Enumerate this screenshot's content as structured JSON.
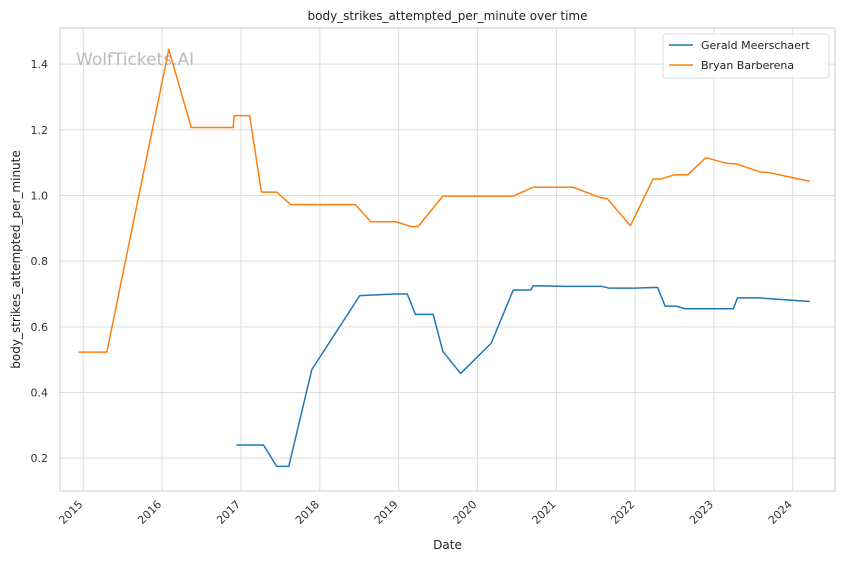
{
  "chart_data": {
    "type": "line",
    "title": "body_strikes_attempted_per_minute over time",
    "xlabel": "Date",
    "ylabel": "body_strikes_attempted_per_minute",
    "watermark": "WolfTickets.AI",
    "x_ticks": [
      "2015",
      "2016",
      "2017",
      "2018",
      "2019",
      "2020",
      "2021",
      "2022",
      "2023",
      "2024"
    ],
    "y_ticks": [
      "0.2",
      "0.4",
      "0.6",
      "0.8",
      "1.0",
      "1.2",
      "1.4"
    ],
    "xlim": [
      "2014-09-15",
      "2024-07-15"
    ],
    "ylim": [
      0.1,
      1.51
    ],
    "grid": true,
    "legend_position": "top-right",
    "series": [
      {
        "name": "Gerald Meerschaert",
        "color": "#1f77b4",
        "points": [
          [
            "2016-12-10",
            0.24
          ],
          [
            "2017-04-15",
            0.24
          ],
          [
            "2017-06-15",
            0.175
          ],
          [
            "2017-08-10",
            0.175
          ],
          [
            "2017-11-25",
            0.47
          ],
          [
            "2018-07-05",
            0.695
          ],
          [
            "2018-12-15",
            0.7
          ],
          [
            "2019-02-10",
            0.7
          ],
          [
            "2019-03-20",
            0.638
          ],
          [
            "2019-06-10",
            0.638
          ],
          [
            "2019-07-25",
            0.525
          ],
          [
            "2019-10-15",
            0.458
          ],
          [
            "2020-03-05",
            0.55
          ],
          [
            "2020-06-15",
            0.712
          ],
          [
            "2020-09-05",
            0.712
          ],
          [
            "2020-09-15",
            0.725
          ],
          [
            "2021-02-15",
            0.723
          ],
          [
            "2021-08-01",
            0.723
          ],
          [
            "2021-09-01",
            0.718
          ],
          [
            "2022-01-01",
            0.718
          ],
          [
            "2022-04-15",
            0.72
          ],
          [
            "2022-05-20",
            0.663
          ],
          [
            "2022-07-10",
            0.663
          ],
          [
            "2022-08-20",
            0.655
          ],
          [
            "2023-04-01",
            0.655
          ],
          [
            "2023-04-20",
            0.688
          ],
          [
            "2023-08-01",
            0.688
          ],
          [
            "2024-03-20",
            0.677
          ]
        ]
      },
      {
        "name": "Bryan Barberena",
        "color": "#ff7f0e",
        "points": [
          [
            "2014-12-10",
            0.523
          ],
          [
            "2015-04-20",
            0.523
          ],
          [
            "2016-02-01",
            1.445
          ],
          [
            "2016-05-15",
            1.207
          ],
          [
            "2016-11-25",
            1.207
          ],
          [
            "2016-12-01",
            1.243
          ],
          [
            "2017-02-10",
            1.243
          ],
          [
            "2017-04-05",
            1.01
          ],
          [
            "2017-06-15",
            1.01
          ],
          [
            "2017-08-20",
            0.972
          ],
          [
            "2018-06-15",
            0.972
          ],
          [
            "2018-08-25",
            0.92
          ],
          [
            "2018-12-20",
            0.92
          ],
          [
            "2019-03-01",
            0.905
          ],
          [
            "2019-04-01",
            0.905
          ],
          [
            "2019-07-25",
            0.998
          ],
          [
            "2020-06-15",
            0.998
          ],
          [
            "2020-09-15",
            1.025
          ],
          [
            "2021-03-20",
            1.025
          ],
          [
            "2021-07-25",
            0.993
          ],
          [
            "2021-08-25",
            0.99
          ],
          [
            "2021-12-10",
            0.908
          ],
          [
            "2022-03-25",
            1.05
          ],
          [
            "2022-05-01",
            1.05
          ],
          [
            "2022-07-01",
            1.063
          ],
          [
            "2022-09-01",
            1.063
          ],
          [
            "2022-11-25",
            1.115
          ],
          [
            "2023-03-01",
            1.098
          ],
          [
            "2023-04-15",
            1.096
          ],
          [
            "2023-08-01",
            1.072
          ],
          [
            "2023-09-10",
            1.07
          ],
          [
            "2024-03-20",
            1.043
          ]
        ]
      }
    ]
  }
}
